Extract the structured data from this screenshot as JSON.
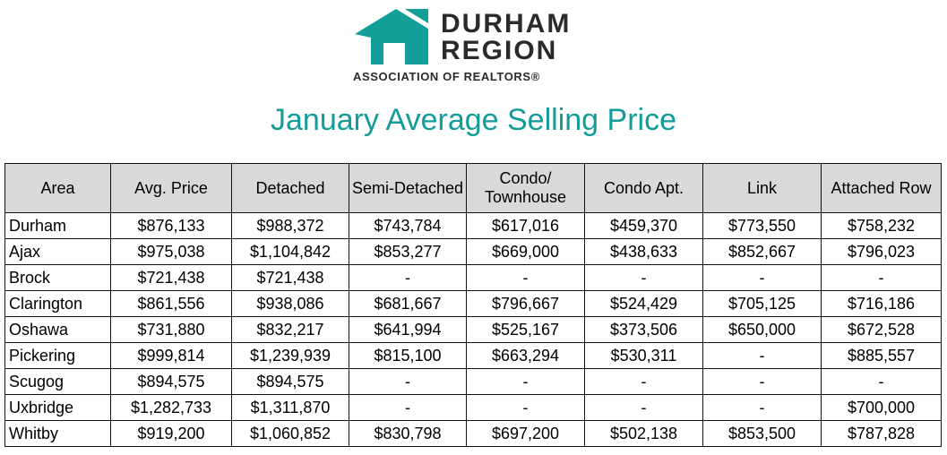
{
  "logo": {
    "line1": "DURHAM",
    "line2": "REGION",
    "subtitle": "ASSOCIATION OF REALTORS®",
    "mark_color": "#129e99"
  },
  "title": "January Average Selling Price",
  "accent_color": "#139d99",
  "header_bg": "#d9d9d9",
  "columns": [
    "Area",
    "Avg. Price",
    "Detached",
    "Semi-Detached",
    "Condo/ Townhouse",
    "Condo Apt.",
    "Link",
    "Attached Row"
  ],
  "rows": [
    [
      "Durham",
      "$876,133",
      "$988,372",
      "$743,784",
      "$617,016",
      "$459,370",
      "$773,550",
      "$758,232"
    ],
    [
      "Ajax",
      "$975,038",
      "$1,104,842",
      "$853,277",
      "$669,000",
      "$438,633",
      "$852,667",
      "$796,023"
    ],
    [
      "Brock",
      "$721,438",
      "$721,438",
      "-",
      "-",
      "-",
      "-",
      "-"
    ],
    [
      "Clarington",
      "$861,556",
      "$938,086",
      "$681,667",
      "$796,667",
      "$524,429",
      "$705,125",
      "$716,186"
    ],
    [
      "Oshawa",
      "$731,880",
      "$832,217",
      "$641,994",
      "$525,167",
      "$373,506",
      "$650,000",
      "$672,528"
    ],
    [
      "Pickering",
      "$999,814",
      "$1,239,939",
      "$815,100",
      "$663,294",
      "$530,311",
      "-",
      "$885,557"
    ],
    [
      "Scugog",
      "$894,575",
      "$894,575",
      "-",
      "-",
      "-",
      "-",
      "-"
    ],
    [
      "Uxbridge",
      "$1,282,733",
      "$1,311,870",
      "-",
      "-",
      "-",
      "-",
      "$700,000"
    ],
    [
      "Whitby",
      "$919,200",
      "$1,060,852",
      "$830,798",
      "$697,200",
      "$502,138",
      "$853,500",
      "$787,828"
    ]
  ]
}
